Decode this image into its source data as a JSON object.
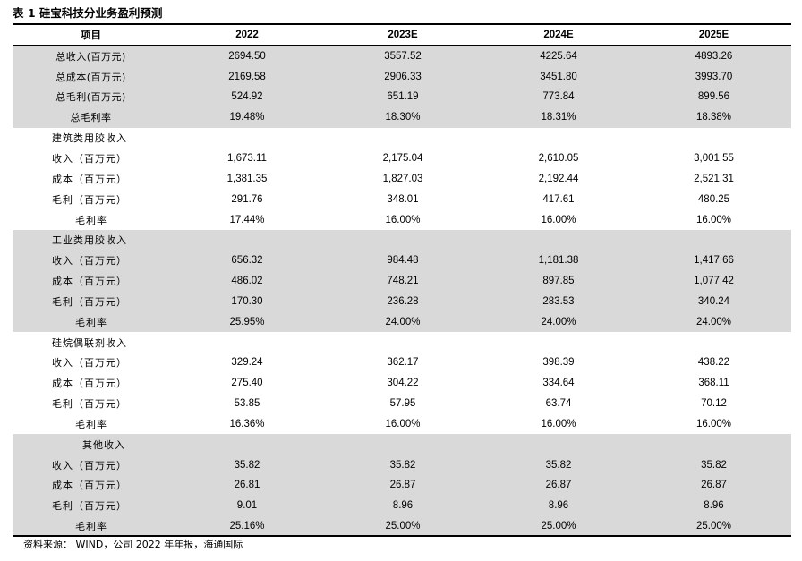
{
  "title": "表 1 硅宝科技分业务盈利预测",
  "header": {
    "item": "项目",
    "years": [
      "2022",
      "2023E",
      "2024E",
      "2025E"
    ]
  },
  "rows": [
    {
      "label": "总收入(百万元)",
      "values": [
        "2694.50",
        "3557.52",
        "4225.64",
        "4893.26"
      ]
    },
    {
      "label": "总成本(百万元)",
      "values": [
        "2169.58",
        "2906.33",
        "3451.80",
        "3993.70"
      ]
    },
    {
      "label": "总毛利(百万元)",
      "values": [
        "524.92",
        "651.19",
        "773.84",
        "899.56"
      ]
    },
    {
      "label": "总毛利率",
      "values": [
        "19.48%",
        "18.30%",
        "18.31%",
        "18.38%"
      ]
    },
    {
      "label": "建筑类用胶收入",
      "values": [
        "",
        "",
        "",
        ""
      ]
    },
    {
      "label": "收入（百万元）",
      "values": [
        "1,673.11",
        "2,175.04",
        "2,610.05",
        "3,001.55"
      ]
    },
    {
      "label": "成本（百万元）",
      "values": [
        "1,381.35",
        "1,827.03",
        "2,192.44",
        "2,521.31"
      ]
    },
    {
      "label": "毛利（百万元）",
      "values": [
        "291.76",
        "348.01",
        "417.61",
        "480.25"
      ]
    },
    {
      "label": "毛利率",
      "values": [
        "17.44%",
        "16.00%",
        "16.00%",
        "16.00%"
      ]
    },
    {
      "label": "工业类用胶收入",
      "values": [
        "",
        "",
        "",
        ""
      ]
    },
    {
      "label": "收入（百万元）",
      "values": [
        "656.32",
        "984.48",
        "1,181.38",
        "1,417.66"
      ]
    },
    {
      "label": "成本（百万元）",
      "values": [
        "486.02",
        "748.21",
        "897.85",
        "1,077.42"
      ]
    },
    {
      "label": "毛利（百万元）",
      "values": [
        "170.30",
        "236.28",
        "283.53",
        "340.24"
      ]
    },
    {
      "label": "毛利率",
      "values": [
        "25.95%",
        "24.00%",
        "24.00%",
        "24.00%"
      ]
    },
    {
      "label": "硅烷偶联剂收入",
      "values": [
        "",
        "",
        "",
        ""
      ]
    },
    {
      "label": "收入（百万元）",
      "values": [
        "329.24",
        "362.17",
        "398.39",
        "438.22"
      ]
    },
    {
      "label": "成本（百万元）",
      "values": [
        "275.40",
        "304.22",
        "334.64",
        "368.11"
      ]
    },
    {
      "label": "毛利（百万元）",
      "values": [
        "53.85",
        "57.95",
        "63.74",
        "70.12"
      ]
    },
    {
      "label": "毛利率",
      "values": [
        "16.36%",
        "16.00%",
        "16.00%",
        "16.00%"
      ]
    },
    {
      "label": "其他收入",
      "values": [
        "",
        "",
        "",
        ""
      ]
    },
    {
      "label": "收入（百万元）",
      "values": [
        "35.82",
        "35.82",
        "35.82",
        "35.82"
      ]
    },
    {
      "label": "成本（百万元）",
      "values": [
        "26.81",
        "26.87",
        "26.87",
        "26.87"
      ]
    },
    {
      "label": "毛利（百万元）",
      "values": [
        "9.01",
        "8.96",
        "8.96",
        "8.96"
      ]
    },
    {
      "label": "毛利率",
      "values": [
        "25.16%",
        "25.00%",
        "25.00%",
        "25.00%"
      ]
    }
  ],
  "source": "资料来源： WIND，公司 2022 年年报，海通国际",
  "colors": {
    "shade": "#d9d9d9",
    "rule": "#000000"
  }
}
